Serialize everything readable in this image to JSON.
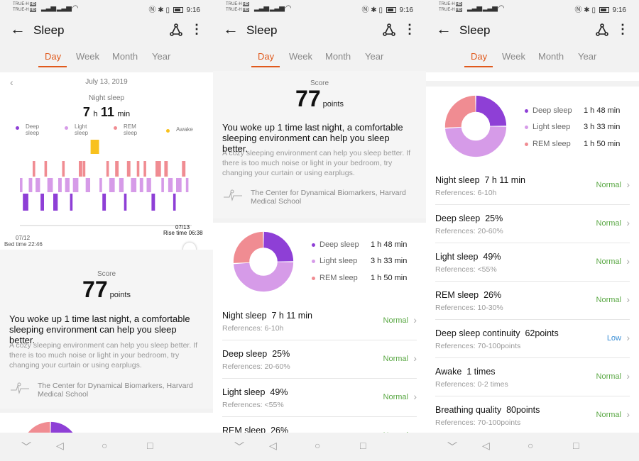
{
  "status": {
    "carrier1": "TRUE-H",
    "carrier2": "TRUE-H",
    "network": "4G",
    "time": "9:16"
  },
  "appbar": {
    "title": "Sleep",
    "back_icon": "back-arrow-icon",
    "share_icon": "share-icon",
    "more_icon": "more-vert-icon"
  },
  "tabs": [
    "Day",
    "Week",
    "Month",
    "Year"
  ],
  "active_tab": "Day",
  "colors": {
    "accent": "#e0591c",
    "deep": "#8e3fd6",
    "light": "#d69be8",
    "rem": "#f08c92",
    "awake": "#f8c11d",
    "normal": "#5aa844",
    "low": "#3b8fd6"
  },
  "sleep_chart": {
    "date": "July 13, 2019",
    "caption": "Night sleep",
    "duration_h": "7",
    "h_unit": "h",
    "duration_m": "11",
    "m_unit": "min",
    "legend": [
      {
        "key": "deep",
        "line1": "Deep",
        "line2": "sleep"
      },
      {
        "key": "light",
        "line1": "Light",
        "line2": "sleep"
      },
      {
        "key": "rem",
        "line1": "REM",
        "line2": "sleep"
      },
      {
        "key": "awake",
        "line1": "Awake",
        "line2": ""
      }
    ],
    "start_date": "07/12",
    "bed_time": "Bed time 22:46",
    "end_date": "07/13",
    "rise_time": "Rise time 06:38"
  },
  "score": {
    "label": "Score",
    "value": "77",
    "unit": "points",
    "message": "You woke up 1 time last night, a comfortable sleeping environment can help you sleep better.",
    "advice": "A cozy sleeping environment can help you sleep better. If there is too much noise or light in your bedroom, try changing your curtain or using earplugs.",
    "source": "The Center for Dynamical Biomarkers, Harvard Medical School"
  },
  "breakdown": [
    {
      "name": "Deep sleep",
      "value": "1 h 48 min",
      "color_key": "deep",
      "percent": 25
    },
    {
      "name": "Light sleep",
      "value": "3 h 33 min",
      "color_key": "light",
      "percent": 49
    },
    {
      "name": "REM sleep",
      "value": "1 h 50 min",
      "color_key": "rem",
      "percent": 26
    }
  ],
  "metrics": [
    {
      "name": "Night sleep",
      "value": "7 h 11 min",
      "ref": "References: 6-10h",
      "status": "Normal"
    },
    {
      "name": "Deep sleep",
      "value": "25%",
      "ref": "References: 20-60%",
      "status": "Normal"
    },
    {
      "name": "Light sleep",
      "value": "49%",
      "ref": "References: <55%",
      "status": "Normal"
    },
    {
      "name": "REM sleep",
      "value": "26%",
      "ref": "References: 10-30%",
      "status": "Normal"
    },
    {
      "name": "Deep sleep continuity",
      "value": "62points",
      "ref": "References: 70-100points",
      "status": "Low"
    },
    {
      "name": "Awake",
      "value": "1 times",
      "ref": "References: 0-2 times",
      "status": "Normal"
    },
    {
      "name": "Breathing quality",
      "value": "80points",
      "ref": "References: 70-100points",
      "status": "Normal"
    }
  ],
  "navbar": {
    "back": "◁",
    "home": "○",
    "recents": "□",
    "down": "﹀"
  }
}
